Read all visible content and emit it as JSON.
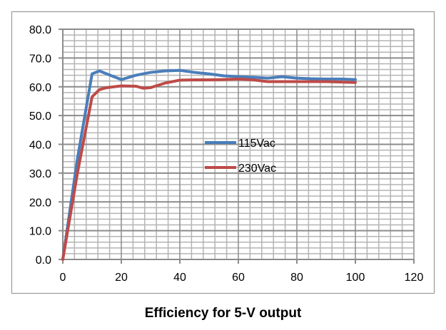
{
  "chart_data": {
    "type": "line",
    "title": "Efficiency for 5-V output",
    "xlabel": "",
    "ylabel": "",
    "xlim": [
      0,
      120
    ],
    "ylim": [
      0,
      80
    ],
    "xticks": [
      "0",
      "20",
      "40",
      "60",
      "80",
      "100",
      "120"
    ],
    "yticks": [
      "0.0",
      "10.0",
      "20.0",
      "30.0",
      "40.0",
      "50.0",
      "60.0",
      "70.0",
      "80.0"
    ],
    "grid": true,
    "legend_position": "center-right",
    "series": [
      {
        "name": "115Vac",
        "color": "#4a7ebb",
        "x": [
          0,
          5,
          10,
          12.5,
          15,
          20,
          25,
          30,
          35,
          40,
          45,
          50,
          55,
          60,
          65,
          70,
          75,
          80,
          85,
          90,
          95,
          100
        ],
        "y": [
          0,
          35,
          64.5,
          65.5,
          64.5,
          62.5,
          64,
          65,
          65.5,
          65.7,
          65,
          64.5,
          63.8,
          63.5,
          63.3,
          63,
          63.5,
          63,
          62.8,
          62.7,
          62.7,
          62.5
        ]
      },
      {
        "name": "230Vac",
        "color": "#be4b48",
        "x": [
          0,
          5,
          10,
          12.5,
          15,
          20,
          25,
          27.5,
          30,
          35,
          40,
          45,
          50,
          55,
          60,
          65,
          70,
          75,
          80,
          90,
          100
        ],
        "y": [
          0,
          30,
          56.5,
          59,
          59.7,
          60.3,
          60.2,
          59.5,
          59.7,
          61.3,
          62.3,
          62.4,
          62.4,
          62.5,
          62.7,
          62.4,
          61.8,
          61.8,
          61.8,
          61.8,
          61.5
        ]
      }
    ]
  }
}
